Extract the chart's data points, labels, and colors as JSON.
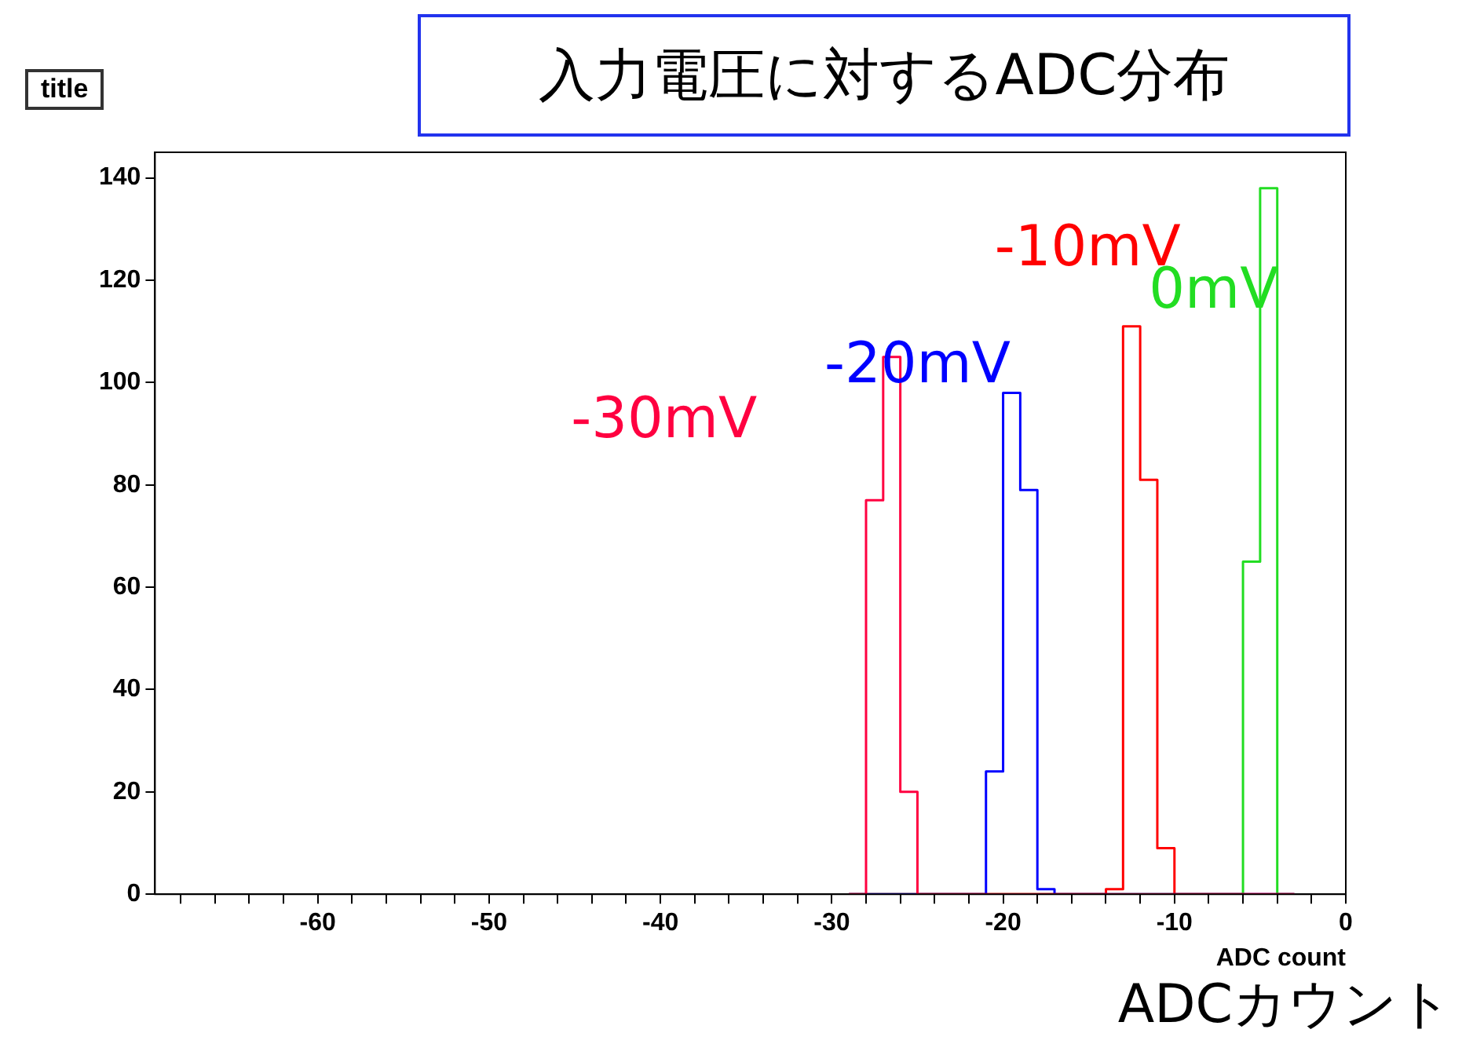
{
  "chart_data": {
    "type": "histogram",
    "title": "入力電圧に対するADC分布",
    "subtitle": "title",
    "xlabel": "ADC count",
    "annotations": [
      "ADCカウント"
    ],
    "bins": [
      -29,
      -28,
      -27,
      -26,
      -25,
      -24,
      -23,
      -22,
      -21,
      -20,
      -19,
      -18,
      -17,
      -16,
      -15,
      -14,
      -13,
      -12,
      -11,
      -10,
      -9,
      -8,
      -7,
      -6,
      -5,
      -4,
      -3
    ],
    "series": [
      {
        "name": "-30mV",
        "color": "#ff0040",
        "values": [
          0,
          77,
          105,
          20,
          0,
          0,
          0,
          0,
          0,
          0,
          0,
          0,
          0,
          0,
          0,
          0,
          0,
          0,
          0,
          0,
          0,
          0,
          0,
          0,
          0,
          0
        ]
      },
      {
        "name": "-20mV",
        "color": "#0000ff",
        "values": [
          0,
          0,
          0,
          0,
          0,
          0,
          0,
          0,
          24,
          98,
          79,
          1,
          0,
          0,
          0,
          0,
          0,
          0,
          0,
          0,
          0,
          0,
          0,
          0,
          0,
          0
        ]
      },
      {
        "name": "-10mV",
        "color": "#ff0000",
        "values": [
          0,
          0,
          0,
          0,
          0,
          0,
          0,
          0,
          0,
          0,
          0,
          0,
          0,
          0,
          0,
          1,
          111,
          81,
          9,
          0,
          0,
          0,
          0,
          0,
          0,
          0
        ]
      },
      {
        "name": "0mV",
        "color": "#22dd22",
        "values": [
          0,
          0,
          0,
          0,
          0,
          0,
          0,
          0,
          0,
          0,
          0,
          0,
          0,
          0,
          0,
          0,
          0,
          0,
          0,
          0,
          0,
          0,
          0,
          65,
          138,
          0
        ]
      }
    ],
    "xlim": [
      -69.5,
      0
    ],
    "ylim": [
      0,
      145
    ],
    "xticks": [
      {
        "value": -68,
        "label": null
      },
      {
        "value": -66,
        "label": null
      },
      {
        "value": -64,
        "label": null
      },
      {
        "value": -62,
        "label": null
      },
      -60,
      {
        "value": -58,
        "label": null
      },
      {
        "value": -56,
        "label": null
      },
      {
        "value": -54,
        "label": null
      },
      {
        "value": -52,
        "label": null
      },
      -50,
      {
        "value": -48,
        "label": null
      },
      {
        "value": -46,
        "label": null
      },
      {
        "value": -44,
        "label": null
      },
      {
        "value": -42,
        "label": null
      },
      -40,
      {
        "value": -38,
        "label": null
      },
      {
        "value": -36,
        "label": null
      },
      {
        "value": -34,
        "label": null
      },
      {
        "value": -32,
        "label": null
      },
      -30,
      {
        "value": -28,
        "label": null
      },
      {
        "value": -26,
        "label": null
      },
      {
        "value": -24,
        "label": null
      },
      {
        "value": -22,
        "label": null
      },
      -20,
      {
        "value": -18,
        "label": null
      },
      {
        "value": -16,
        "label": null
      },
      {
        "value": -14,
        "label": null
      },
      {
        "value": -12,
        "label": null
      },
      -10,
      {
        "value": -8,
        "label": null
      },
      {
        "value": -6,
        "label": null
      },
      {
        "value": -4,
        "label": null
      },
      {
        "value": -2,
        "label": null
      },
      0
    ],
    "yticks": [
      0,
      20,
      40,
      60,
      80,
      100,
      120,
      140
    ],
    "grid": false,
    "legend": false
  }
}
